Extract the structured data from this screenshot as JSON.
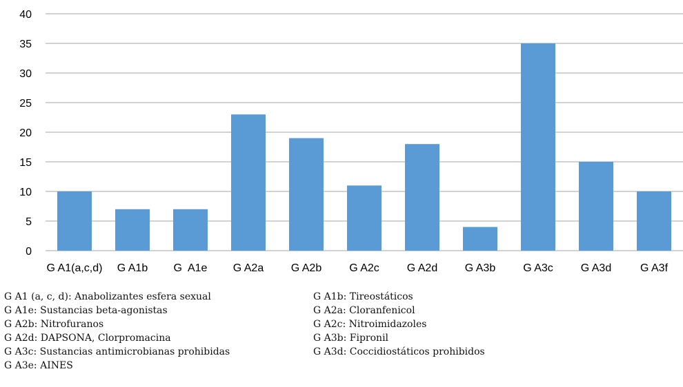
{
  "chart_data": {
    "type": "bar",
    "categories": [
      "G A1(a,c,d)",
      "G A1b",
      "G  A1e",
      "G A2a",
      "G A2b",
      "G A2c",
      "G A2d",
      "G A3b",
      "G A3c",
      "G A3d",
      "G A3f"
    ],
    "values": [
      10,
      7,
      7,
      23,
      19,
      11,
      18,
      4,
      35,
      15,
      10
    ],
    "ylim": [
      0,
      40
    ],
    "yticks": [
      0,
      5,
      10,
      15,
      20,
      25,
      30,
      35,
      40
    ],
    "grid": true,
    "bar_color": "#5b9bd5",
    "grid_color": "#a6a6a6"
  },
  "legend_notes": {
    "left": [
      "G A1 (a, c, d): Anabolizantes esfera sexual",
      "G A1e: Sustancias beta-agonistas",
      "G A2b: Nitrofuranos",
      "G A2d: DAPSONA, Clorpromacina",
      "G A3c: Sustancias antimicrobianas prohibidas",
      "G A3e: AINES"
    ],
    "right": [
      "G A1b: Tireostáticos",
      "G A2a: Cloranfenicol",
      "G A2c: Nitroimidazoles",
      "G A3b: Fipronil",
      "G A3d: Coccidiostáticos prohibidos"
    ]
  }
}
